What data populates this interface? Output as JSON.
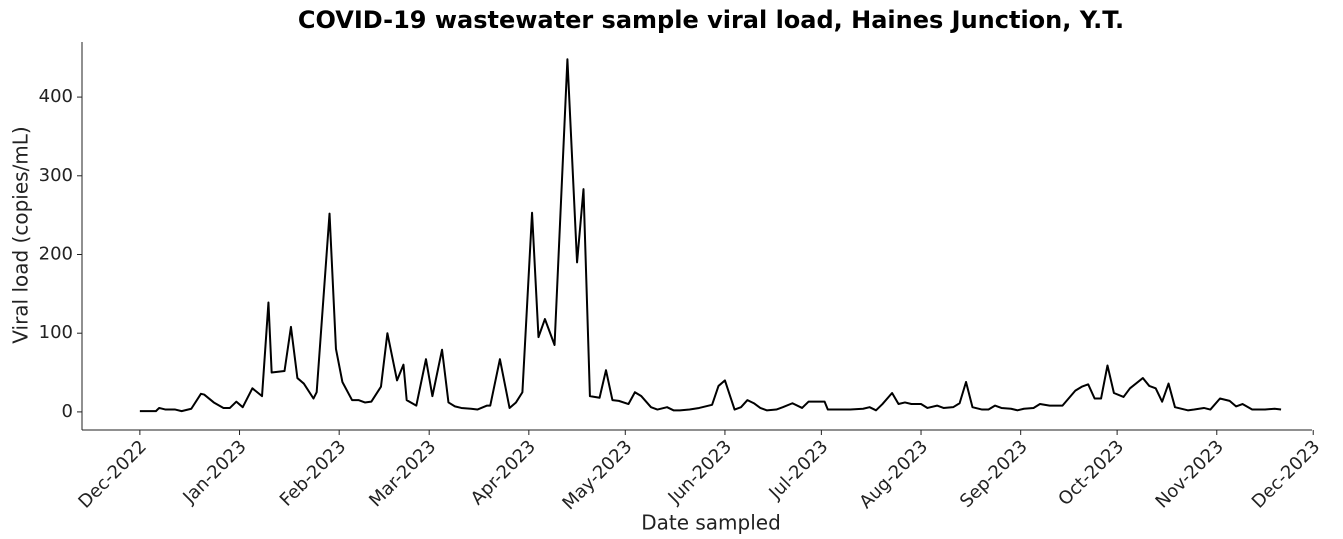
{
  "chart_data": {
    "type": "line",
    "title": "COVID-19 wastewater sample viral load, Haines Junction, Y.T.",
    "x_label": "Date sampled",
    "y_label": "Viral load (copies/mL)",
    "color": "#000000",
    "grid": false,
    "x": [
      0,
      5,
      6,
      8,
      11,
      13,
      16,
      19,
      20,
      23,
      26,
      28,
      30,
      32,
      35,
      38,
      40,
      41,
      45,
      47,
      49,
      51,
      54,
      55,
      59,
      61,
      63,
      66,
      68,
      70,
      72,
      75,
      77,
      80,
      82,
      83,
      86,
      89,
      91,
      94,
      96,
      98,
      100,
      103,
      105,
      108,
      109,
      112,
      115,
      117,
      119,
      122,
      124,
      126,
      129,
      133,
      136,
      138,
      140,
      143,
      145,
      147,
      149,
      152,
      154,
      156,
      159,
      161,
      164,
      166,
      168,
      171,
      174,
      178,
      180,
      182,
      185,
      187,
      189,
      191,
      193,
      195,
      198,
      200,
      203,
      206,
      208,
      210,
      213,
      214,
      218,
      221,
      225,
      227,
      229,
      231,
      234,
      236,
      238,
      240,
      243,
      245,
      248,
      250,
      253,
      255,
      257,
      259,
      262,
      264,
      266,
      268,
      271,
      273,
      275,
      278,
      280,
      283,
      287,
      291,
      293,
      295,
      297,
      299,
      301,
      303,
      306,
      308,
      312,
      314,
      316,
      318,
      320,
      322,
      326,
      328,
      331,
      333,
      336,
      339,
      341,
      343,
      346,
      348,
      350,
      353,
      355
    ],
    "values": [
      1,
      1,
      5,
      3,
      3,
      1,
      4,
      23,
      22,
      12,
      5,
      5,
      13,
      6,
      30,
      20,
      139,
      50,
      52,
      108,
      43,
      36,
      17,
      25,
      252,
      80,
      38,
      15,
      15,
      12,
      13,
      32,
      100,
      40,
      60,
      15,
      8,
      67,
      20,
      79,
      12,
      7,
      5,
      4,
      3,
      8,
      8,
      67,
      5,
      12,
      25,
      253,
      95,
      118,
      85,
      448,
      190,
      283,
      20,
      18,
      53,
      15,
      14,
      10,
      25,
      20,
      6,
      3,
      6,
      2,
      2,
      3,
      5,
      9,
      33,
      40,
      3,
      6,
      15,
      11,
      5,
      2,
      3,
      6,
      11,
      5,
      13,
      13,
      13,
      3,
      3,
      3,
      4,
      6,
      2,
      10,
      24,
      10,
      12,
      10,
      10,
      5,
      8,
      5,
      6,
      11,
      38,
      6,
      3,
      3,
      8,
      5,
      4,
      2,
      4,
      5,
      10,
      8,
      8,
      27,
      32,
      35,
      17,
      17,
      59,
      24,
      19,
      30,
      43,
      33,
      30,
      13,
      36,
      6,
      2,
      3,
      5,
      3,
      17,
      14,
      7,
      10,
      3,
      3,
      3,
      4,
      3
    ],
    "xlim": [
      -18,
      364
    ],
    "xticks": [
      {
        "value": 0,
        "label": "Dec-2022"
      },
      {
        "value": 31,
        "label": "Jan-2023"
      },
      {
        "value": 62,
        "label": "Feb-2023"
      },
      {
        "value": 90,
        "label": "Mar-2023"
      },
      {
        "value": 121,
        "label": "Apr-2023"
      },
      {
        "value": 151,
        "label": "May-2023"
      },
      {
        "value": 182,
        "label": "Jun-2023"
      },
      {
        "value": 212,
        "label": "Jul-2023"
      },
      {
        "value": 243,
        "label": "Aug-2023"
      },
      {
        "value": 274,
        "label": "Sep-2023"
      },
      {
        "value": 304,
        "label": "Oct-2023"
      },
      {
        "value": 335,
        "label": "Nov-2023"
      },
      {
        "value": 365,
        "label": "Dec-2023"
      }
    ],
    "ylim": [
      -23,
      470
    ],
    "yticks": [
      0,
      100,
      200,
      300,
      400
    ]
  }
}
